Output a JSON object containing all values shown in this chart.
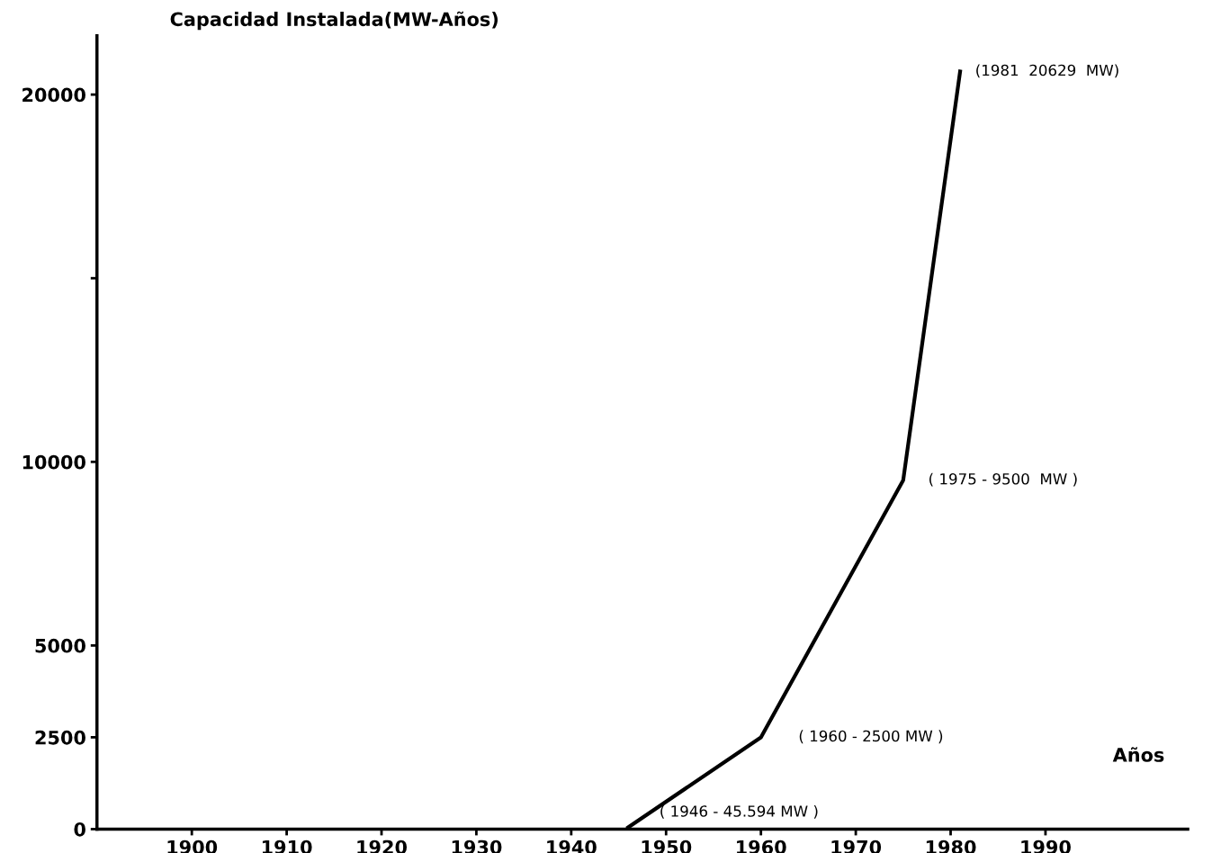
{
  "chart_data": {
    "type": "line",
    "title": "Capacidad Instalada(MW-Años)",
    "xlabel": "Años",
    "x": [
      1946,
      1960,
      1975,
      1981
    ],
    "series": [
      {
        "color": "#000000",
        "values": [
          45.594,
          2500,
          9500,
          20629
        ]
      }
    ],
    "xlim": [
      1890,
      2005
    ],
    "xticks": [
      1900,
      1910,
      1920,
      1930,
      1940,
      1950,
      1960,
      1970,
      1980,
      1990
    ],
    "ylim": [
      0,
      21600
    ],
    "yticks": [
      0,
      2500,
      5000,
      10000,
      {
        "value": 15000,
        "label": null
      },
      20000
    ],
    "annotations": [
      {
        "text": "( 1946 - 45.594 MW )",
        "x": 1946,
        "y": 45.594
      },
      {
        "text": "( 1960 - 2500 MW )",
        "x": 1960,
        "y": 2500
      },
      {
        "text": "( 1975 - 9500  MW )",
        "x": 1975,
        "y": 9500
      },
      {
        "text": "(1981  20629  MW)",
        "x": 1981,
        "y": 20629
      }
    ],
    "grid": false,
    "legend": false,
    "marker": "none",
    "line_style": "solid"
  }
}
